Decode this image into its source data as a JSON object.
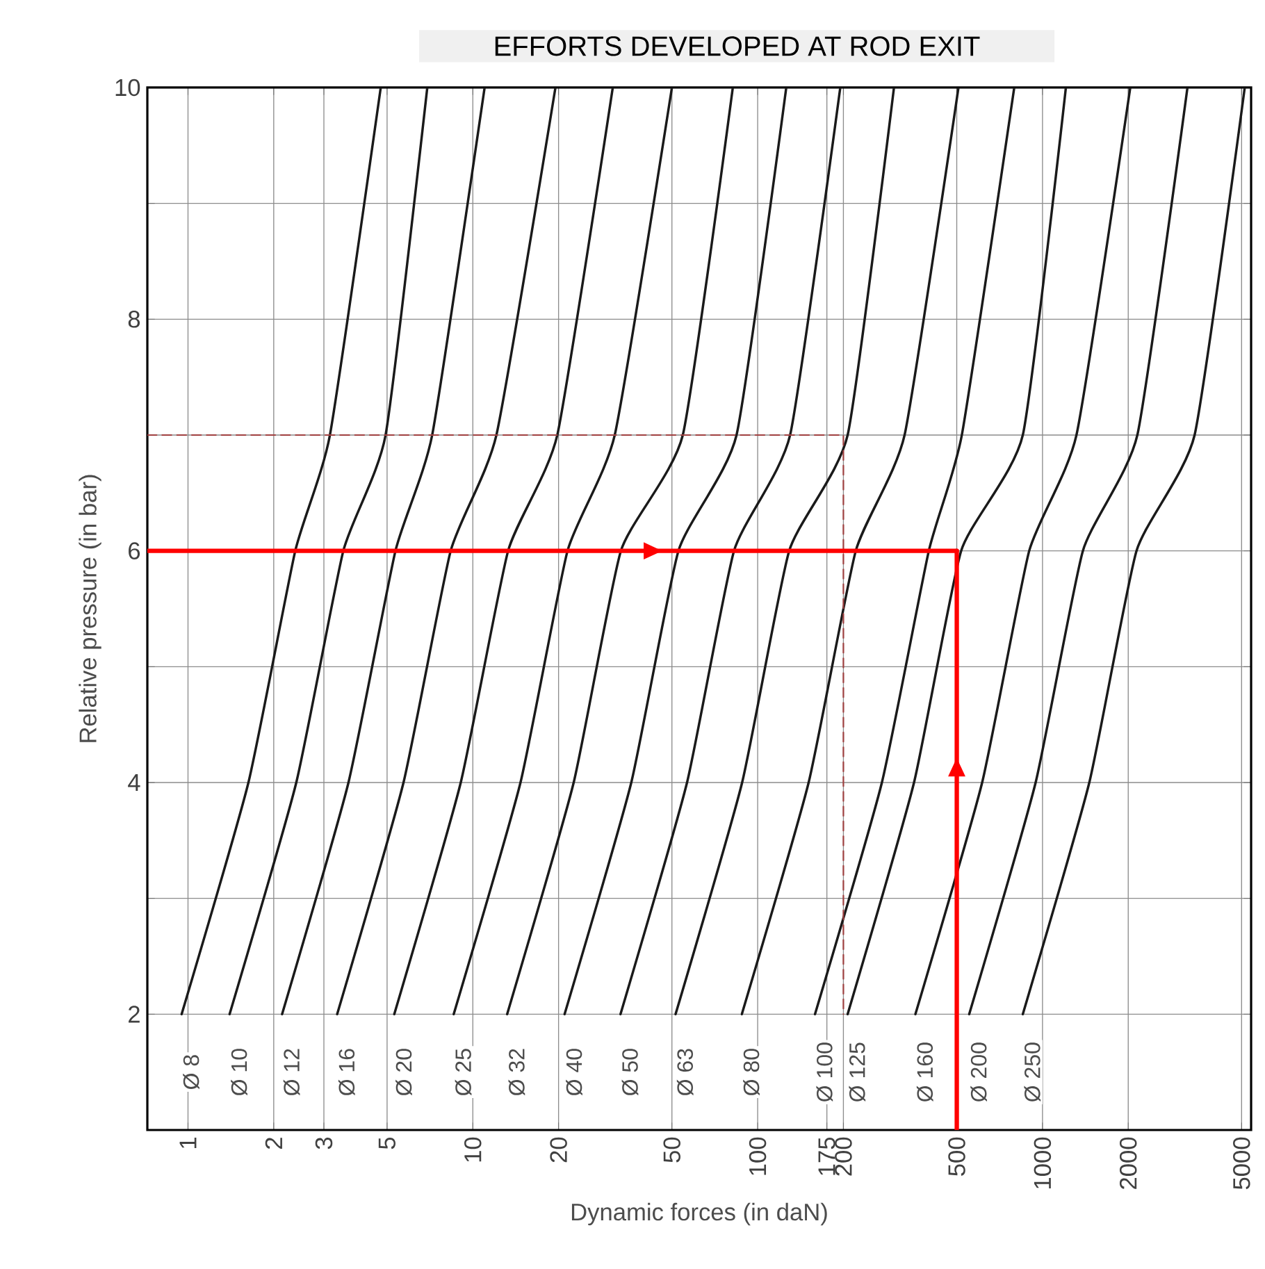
{
  "chart_data": {
    "type": "line",
    "title": "EFFORTS DEVELOPED AT ROD EXIT",
    "xlabel": "Dynamic forces (in daN)",
    "ylabel": "Relative pressure (in bar)",
    "log": "x",
    "grid": true,
    "xlim": [
      0.72,
      5400
    ],
    "ylim": [
      1,
      10
    ],
    "xticks": [
      1,
      2,
      3,
      5,
      10,
      20,
      50,
      100,
      175,
      200,
      500,
      1000,
      2000,
      5000
    ],
    "yticks": [
      2,
      {
        "value": 3,
        "label": null
      },
      4,
      {
        "value": 5,
        "label": null
      },
      6,
      {
        "value": 7,
        "label": null
      },
      8,
      {
        "value": 9,
        "label": null
      },
      10
    ],
    "series": [
      {
        "name": "Ø 8",
        "color": "#1a1a1a",
        "x": [
          0.95,
          1.63,
          2.38,
          3.15,
          4.75
        ],
        "values": [
          2,
          4,
          6,
          7,
          10
        ]
      },
      {
        "name": "Ø 10",
        "color": "#1a1a1a",
        "x": [
          1.4,
          2.4,
          3.51,
          4.94,
          6.92
        ],
        "values": [
          2,
          4,
          6,
          7,
          10
        ]
      },
      {
        "name": "Ø 12",
        "color": "#1a1a1a",
        "x": [
          2.14,
          3.66,
          5.35,
          7.2,
          11
        ],
        "values": [
          2,
          4,
          6,
          7,
          10
        ]
      },
      {
        "name": "Ø 16",
        "color": "#1a1a1a",
        "x": [
          3.34,
          5.71,
          8.36,
          12.1,
          19.5
        ],
        "values": [
          2,
          4,
          6,
          7,
          10
        ]
      },
      {
        "name": "Ø 20",
        "color": "#1a1a1a",
        "x": [
          5.3,
          9.07,
          13.3,
          19.8,
          31
        ],
        "values": [
          2,
          4,
          6,
          7,
          10
        ]
      },
      {
        "name": "Ø 25",
        "color": "#1a1a1a",
        "x": [
          8.57,
          14.7,
          21.5,
          31.5,
          50
        ],
        "values": [
          2,
          4,
          6,
          7,
          10
        ]
      },
      {
        "name": "Ø 32",
        "color": "#1a1a1a",
        "x": [
          13.2,
          22.6,
          33.1,
          54.6,
          81.8
        ],
        "values": [
          2,
          4,
          6,
          7,
          10
        ]
      },
      {
        "name": "Ø 40",
        "color": "#1a1a1a",
        "x": [
          21,
          36,
          52.7,
          84.3,
          126
        ],
        "values": [
          2,
          4,
          6,
          7,
          10
        ]
      },
      {
        "name": "Ø 50",
        "color": "#1a1a1a",
        "x": [
          33,
          56.5,
          82.6,
          130,
          195
        ],
        "values": [
          2,
          4,
          6,
          7,
          10
        ]
      },
      {
        "name": "Ø 63",
        "color": "#1a1a1a",
        "x": [
          51.5,
          88.2,
          129,
          207,
          301
        ],
        "values": [
          2,
          4,
          6,
          7,
          10
        ]
      },
      {
        "name": "Ø 80",
        "color": "#1a1a1a",
        "x": [
          88,
          151,
          221,
          328,
          507
        ],
        "values": [
          2,
          4,
          6,
          7,
          10
        ]
      },
      {
        "name": "Ø 100",
        "color": "#1a1a1a",
        "x": [
          159,
          273,
          399,
          521,
          796
        ],
        "values": [
          2,
          4,
          6,
          7,
          10
        ]
      },
      {
        "name": "Ø 125",
        "color": "#1a1a1a",
        "x": [
          207,
          354,
          518,
          853,
          1208
        ],
        "values": [
          2,
          4,
          6,
          7,
          10
        ]
      },
      {
        "name": "Ø 160",
        "color": "#1a1a1a",
        "x": [
          358,
          614,
          898,
          1316,
          2033
        ],
        "values": [
          2,
          4,
          6,
          7,
          10
        ]
      },
      {
        "name": "Ø 200",
        "color": "#1a1a1a",
        "x": [
          553,
          946,
          1386,
          2153,
          3228
        ],
        "values": [
          2,
          4,
          6,
          7,
          10
        ]
      },
      {
        "name": "Ø 250",
        "color": "#1a1a1a",
        "x": [
          853,
          1460,
          2138,
          3420,
          5129
        ],
        "values": [
          2,
          4,
          6,
          7,
          10
        ]
      },
      {
        "color": "#a04040",
        "line_style": "dashed",
        "x": [
          0.72,
          200,
          200
        ],
        "values": [
          7,
          7,
          2
        ]
      },
      {
        "color": "#ff0000",
        "x": [
          0.72,
          500
        ],
        "values": [
          6,
          6
        ]
      },
      {
        "color": "#ff0000",
        "x": [
          500,
          500
        ],
        "values": [
          1,
          6
        ]
      }
    ]
  }
}
